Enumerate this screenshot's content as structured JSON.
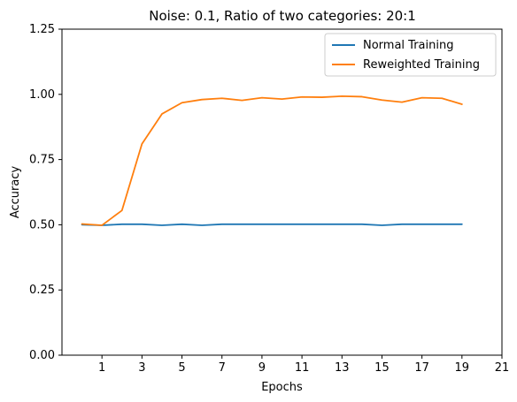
{
  "chart_data": {
    "type": "line",
    "title": "Noise: 0.1, Ratio of two categories: 20:1",
    "xlabel": "Epochs",
    "ylabel": "Accuracy",
    "xlim": [
      -1,
      21
    ],
    "ylim": [
      0.0,
      1.25
    ],
    "xticks": [
      1,
      3,
      5,
      7,
      9,
      11,
      13,
      15,
      17,
      19,
      21
    ],
    "yticks": [
      0.0,
      0.25,
      0.5,
      0.75,
      1.0,
      1.25
    ],
    "ytick_labels": [
      "0.00",
      "0.25",
      "0.50",
      "0.75",
      "1.00",
      "1.25"
    ],
    "grid": false,
    "legend_position": "top-right",
    "x": [
      0,
      1,
      2,
      3,
      4,
      5,
      6,
      7,
      8,
      9,
      10,
      11,
      12,
      13,
      14,
      15,
      16,
      17,
      18,
      19
    ],
    "series": [
      {
        "name": "Normal Training",
        "color": "#1f77b4",
        "values": [
          0.5,
          0.498,
          0.502,
          0.502,
          0.498,
          0.502,
          0.498,
          0.502,
          0.502,
          0.502,
          0.502,
          0.502,
          0.502,
          0.502,
          0.502,
          0.498,
          0.502,
          0.502,
          0.502,
          0.502
        ]
      },
      {
        "name": "Reweighted Training",
        "color": "#ff7f0e",
        "values": [
          0.503,
          0.498,
          0.555,
          0.81,
          0.925,
          0.968,
          0.98,
          0.985,
          0.977,
          0.987,
          0.982,
          0.99,
          0.989,
          0.993,
          0.991,
          0.978,
          0.97,
          0.987,
          0.985,
          0.962
        ]
      }
    ]
  }
}
